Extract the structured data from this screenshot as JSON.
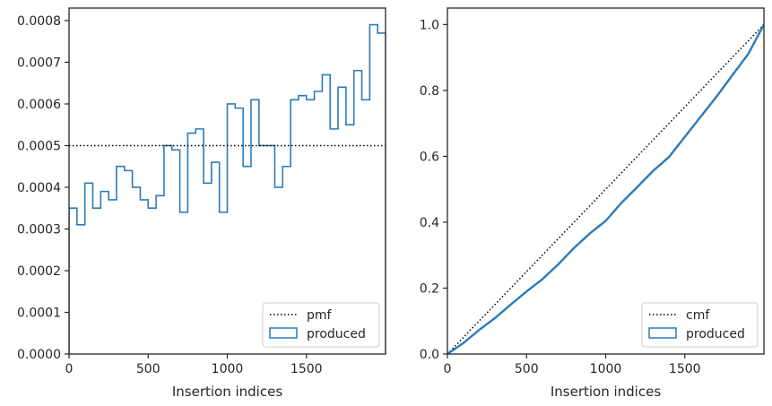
{
  "colors": {
    "produced": "#2b7bb9",
    "reference": "#000000",
    "frame": "#262626"
  },
  "chart_data": [
    {
      "type": "histogram-step",
      "xlabel": "Insertion indices",
      "ylabel": "",
      "xlim": [
        0,
        2000
      ],
      "ylim": [
        0,
        0.00083
      ],
      "xticks": [
        0,
        500,
        1000,
        1500
      ],
      "xtick_labels": [
        "0",
        "500",
        "1000",
        "1500"
      ],
      "yticks": [
        0,
        0.0001,
        0.0002,
        0.0003,
        0.0004,
        0.0005,
        0.0006,
        0.0007,
        0.0008
      ],
      "ytick_labels": [
        "0.0000",
        "0.0001",
        "0.0002",
        "0.0003",
        "0.0004",
        "0.0005",
        "0.0006",
        "0.0007",
        "0.0008"
      ],
      "legend_position": "lower-right",
      "legend": [
        "pmf",
        "produced"
      ],
      "reference_line": {
        "name": "pmf",
        "y": 0.0005,
        "style": "dotted"
      },
      "bin_width": 50,
      "produced": [
        0.00035,
        0.00031,
        0.00041,
        0.00035,
        0.00039,
        0.00037,
        0.00045,
        0.00044,
        0.0004,
        0.00037,
        0.00035,
        0.00038,
        0.0005,
        0.00049,
        0.00034,
        0.00053,
        0.00054,
        0.00041,
        0.00046,
        0.00034,
        0.0006,
        0.00059,
        0.00045,
        0.00061,
        0.0005,
        0.0005,
        0.0004,
        0.00045,
        0.00061,
        0.00062,
        0.00061,
        0.00063,
        0.00067,
        0.00054,
        0.00064,
        0.00055,
        0.00068,
        0.00061,
        0.00079,
        0.00077
      ]
    },
    {
      "type": "line",
      "xlabel": "Insertion indices",
      "ylabel": "",
      "xlim": [
        0,
        2000
      ],
      "ylim": [
        0,
        1.05
      ],
      "xticks": [
        0,
        500,
        1000,
        1500
      ],
      "xtick_labels": [
        "0",
        "500",
        "1000",
        "1500"
      ],
      "yticks": [
        0,
        0.2,
        0.4,
        0.6,
        0.8,
        1.0
      ],
      "ytick_labels": [
        "0.0",
        "0.2",
        "0.4",
        "0.6",
        "0.8",
        "1.0"
      ],
      "legend_position": "lower-right",
      "legend": [
        "cmf",
        "produced"
      ],
      "reference_line": {
        "name": "cmf",
        "points": [
          [
            0,
            0
          ],
          [
            2000,
            1.0
          ]
        ],
        "style": "dotted"
      },
      "produced": {
        "x": [
          0,
          100,
          200,
          300,
          400,
          500,
          600,
          700,
          800,
          900,
          1000,
          1100,
          1200,
          1300,
          1400,
          1500,
          1600,
          1700,
          1800,
          1900,
          2000
        ],
        "y": [
          0,
          0.033,
          0.073,
          0.109,
          0.15,
          0.19,
          0.227,
          0.272,
          0.322,
          0.366,
          0.404,
          0.459,
          0.507,
          0.556,
          0.598,
          0.659,
          0.72,
          0.781,
          0.846,
          0.91,
          1.0
        ]
      }
    }
  ]
}
